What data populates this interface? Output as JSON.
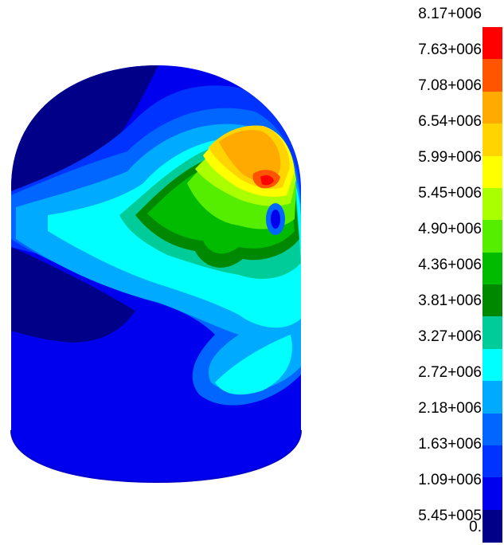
{
  "legend": {
    "labels": [
      "8.17+006",
      "7.63+006",
      "7.08+006",
      "6.54+006",
      "5.99+006",
      "5.45+006",
      "4.90+006",
      "4.36+006",
      "3.81+006",
      "3.27+006",
      "2.72+006",
      "2.18+006",
      "1.63+006",
      "1.09+006",
      "5.45+005",
      "0."
    ],
    "colors": [
      "#ff0000",
      "#ff5500",
      "#ffaa00",
      "#ffd400",
      "#ffff00",
      "#aaff00",
      "#55ee00",
      "#00bb00",
      "#008800",
      "#00cc99",
      "#00ffff",
      "#00aaff",
      "#0066ff",
      "#0033ff",
      "#0000ee",
      "#000088"
    ]
  }
}
